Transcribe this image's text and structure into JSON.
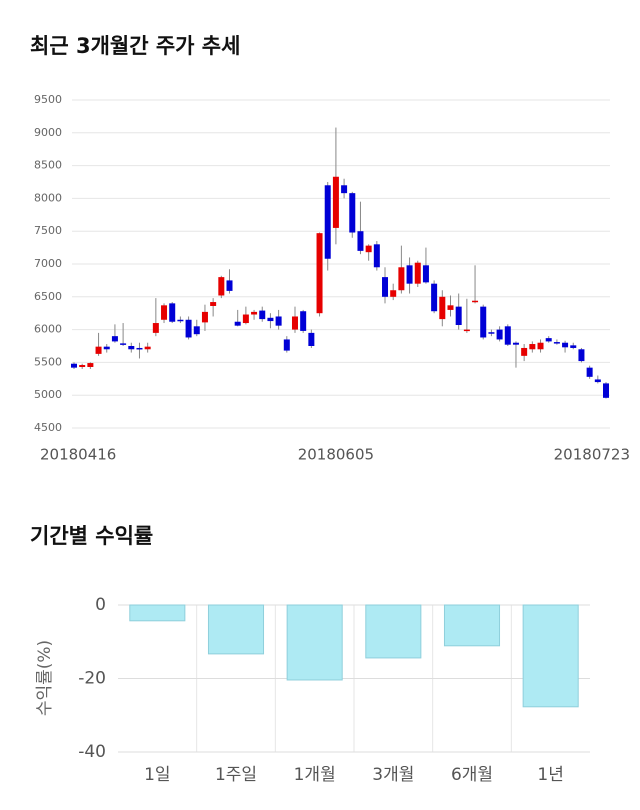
{
  "chart_data": [
    {
      "type": "candlestick",
      "title": "최근 3개월간 주가 추세",
      "categories": [
        "20180416",
        null,
        null,
        null,
        null,
        null,
        null,
        null,
        null,
        null,
        null,
        null,
        null,
        null,
        null,
        null,
        null,
        null,
        null,
        null,
        null,
        null,
        null,
        null,
        null,
        null,
        null,
        null,
        null,
        null,
        null,
        null,
        "20180605",
        null,
        null,
        null,
        null,
        null,
        null,
        null,
        null,
        null,
        null,
        null,
        null,
        null,
        null,
        null,
        null,
        null,
        null,
        null,
        null,
        null,
        null,
        null,
        null,
        null,
        null,
        null,
        null,
        null,
        null,
        null,
        null,
        "20180723"
      ],
      "open": [
        5480,
        5430,
        5430,
        5630,
        5740,
        5900,
        5790,
        5750,
        5720,
        5700,
        5950,
        6150,
        6400,
        6150,
        6150,
        6050,
        6110,
        6360,
        6520,
        6750,
        6120,
        6100,
        6230,
        6290,
        6180,
        6200,
        5850,
        6000,
        6280,
        5950,
        6250,
        8200,
        7550,
        8200,
        8080,
        7500,
        7180,
        7300,
        6800,
        6500,
        6600,
        6980,
        6700,
        6980,
        6700,
        6160,
        6300,
        6350,
        5980,
        6420,
        6350,
        5960,
        6000,
        6050,
        5800,
        5600,
        5700,
        5700,
        5870,
        5810,
        5800,
        5760,
        5700,
        5420,
        5240,
        5180
      ],
      "high": [
        5500,
        5480,
        5500,
        5950,
        5780,
        6080,
        6100,
        5800,
        5800,
        5800,
        6480,
        6400,
        6420,
        6200,
        6200,
        6150,
        6380,
        6480,
        6820,
        6920,
        6300,
        6350,
        6300,
        6350,
        6250,
        6300,
        5900,
        6350,
        6300,
        6000,
        7480,
        8250,
        9080,
        8300,
        8100,
        7950,
        7300,
        7350,
        6950,
        6700,
        7280,
        7100,
        7050,
        7250,
        6750,
        6600,
        6520,
        6550,
        6470,
        6980,
        6380,
        6000,
        6050,
        6080,
        5820,
        5780,
        5820,
        5850,
        5900,
        5850,
        5830,
        5800,
        5720,
        5450,
        5300,
        5200
      ],
      "low": [
        5400,
        5400,
        5400,
        5600,
        5650,
        5800,
        5750,
        5650,
        5560,
        5650,
        5900,
        6100,
        6100,
        6100,
        5850,
        5900,
        5980,
        6200,
        6480,
        6550,
        6050,
        6080,
        6150,
        6120,
        6020,
        6000,
        5650,
        5950,
        5950,
        5720,
        6200,
        6900,
        7300,
        8000,
        7400,
        7150,
        7050,
        6900,
        6400,
        6450,
        6550,
        6550,
        6650,
        6700,
        6250,
        6050,
        6200,
        6000,
        5950,
        6400,
        5850,
        5900,
        5820,
        5750,
        5420,
        5520,
        5650,
        5650,
        5800,
        5770,
        5650,
        5700,
        5500,
        5250,
        5180,
        4950
      ],
      "close": [
        5420,
        5460,
        5490,
        5740,
        5700,
        5820,
        5770,
        5700,
        5700,
        5740,
        6100,
        6370,
        6120,
        6140,
        5880,
        5930,
        6270,
        6420,
        6800,
        6590,
        6060,
        6230,
        6270,
        6160,
        6130,
        6060,
        5680,
        6200,
        5980,
        5750,
        7470,
        7080,
        8330,
        8080,
        7480,
        7200,
        7280,
        6950,
        6500,
        6600,
        6950,
        6700,
        7020,
        6720,
        6280,
        6500,
        6370,
        6070,
        6000,
        6440,
        5880,
        5940,
        5850,
        5770,
        5770,
        5720,
        5780,
        5800,
        5820,
        5790,
        5730,
        5720,
        5520,
        5280,
        5200,
        4960
      ],
      "up_color": "#e60000",
      "down_color": "#0000d6",
      "ylim": [
        4500,
        9500
      ],
      "yticks": [
        4500,
        5000,
        5500,
        6000,
        6500,
        7000,
        7500,
        8000,
        8500,
        9000,
        9500
      ],
      "grid": true
    },
    {
      "type": "bar",
      "title": "기간별 수익률",
      "ylabel": "수익률(%)",
      "categories": [
        "1일",
        "1주일",
        "1개월",
        "3개월",
        "6개월",
        "1년"
      ],
      "values": [
        -4.3,
        -13.3,
        -20.4,
        -14.4,
        -11.1,
        -27.7
      ],
      "color": "#aeeaf3",
      "ylim": [
        -40,
        0
      ],
      "yticks": [
        0,
        -20,
        -40
      ],
      "grid": true
    }
  ]
}
